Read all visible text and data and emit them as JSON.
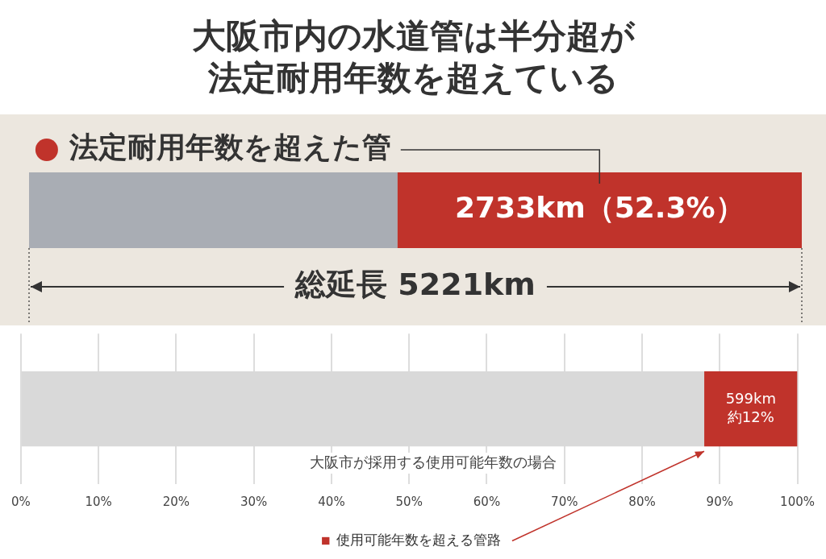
{
  "chart_data": [
    {
      "type": "bar",
      "orientation": "horizontal",
      "stacked": true,
      "title": "大阪市内の水道管は半分超が法定耐用年数を超えている",
      "categories": [
        null
      ],
      "series": [
        {
          "color": "#a9adb4",
          "values": [
            2488
          ]
        },
        {
          "name": "法定耐用年数を超えた管",
          "color": "#c0332b",
          "values": [
            2733
          ],
          "value_labels": [
            "2733km（52.3%）"
          ]
        }
      ],
      "xlim": [
        0,
        5221
      ],
      "legend": "top left",
      "grid": false,
      "annotations": [
        "総延長 5221km"
      ]
    },
    {
      "type": "bar",
      "orientation": "horizontal",
      "stacked": true,
      "categories": [
        null
      ],
      "series": [
        {
          "color": "#d9d9d9",
          "values": [
            88
          ]
        },
        {
          "name": "使用可能年数を超える管路",
          "color": "#c0332b",
          "values": [
            12
          ],
          "value_labels": [
            "599km\n約12%"
          ]
        }
      ],
      "xlim": [
        0,
        100
      ],
      "xticks": [
        {
          "value": 0,
          "label": "0%"
        },
        {
          "value": 10,
          "label": "10%"
        },
        {
          "value": 20,
          "label": "20%"
        },
        {
          "value": 30,
          "label": "30%"
        },
        {
          "value": 40,
          "label": "40%"
        },
        {
          "value": 50,
          "label": "50%"
        },
        {
          "value": 60,
          "label": "60%"
        },
        {
          "value": 70,
          "label": "70%"
        },
        {
          "value": 80,
          "label": "80%"
        },
        {
          "value": 90,
          "label": "90%"
        },
        {
          "value": 100,
          "label": "100%"
        }
      ],
      "grid": "x",
      "legend": "bottom",
      "annotations": [
        "大阪市が採用する使用可能年数の場合"
      ]
    }
  ]
}
